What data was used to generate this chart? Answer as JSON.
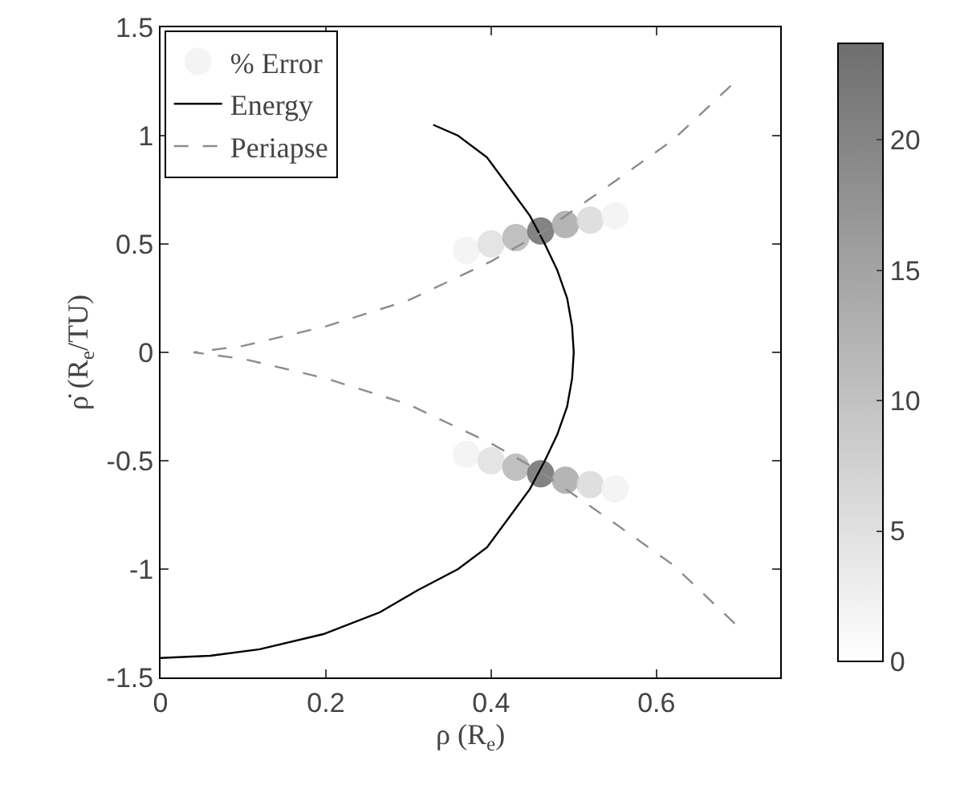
{
  "chart_data": {
    "type": "line",
    "xlabel": "ρ (R$_{e}$)",
    "ylabel": "ρ̇ (R$_{e}$/TU)",
    "xlim": [
      0,
      0.75
    ],
    "xticks": [
      0,
      0.2,
      0.4,
      0.6
    ],
    "ylim": [
      -1.5,
      1.5
    ],
    "yticks": [
      -1.5,
      -1,
      -0.5,
      0,
      0.5,
      1,
      1.5
    ],
    "clim": [
      0,
      23.7
    ],
    "cticks": [
      0,
      5,
      10,
      15,
      20
    ],
    "grid": false,
    "legend": "top left",
    "series": [
      {
        "name": "% Error",
        "type": "scatter",
        "colors": [
          "#f3f3f3",
          "#e0e0e0",
          "#b6b6b6",
          "#6e6e6e",
          "#a9a9a9",
          "#dadada",
          "#f3f3f3",
          "#f3f3f3",
          "#e0e0e0",
          "#b6b6b6",
          "#6e6e6e",
          "#a9a9a9",
          "#dadada",
          "#f3f3f3"
        ],
        "x": [
          0.37,
          0.4,
          0.43,
          0.46,
          0.49,
          0.52,
          0.55,
          0.37,
          0.4,
          0.43,
          0.46,
          0.49,
          0.52,
          0.55
        ],
        "values": [
          0.47,
          0.5,
          0.53,
          0.56,
          0.59,
          0.61,
          0.63,
          -0.47,
          -0.5,
          -0.53,
          -0.56,
          -0.59,
          -0.61,
          -0.63
        ],
        "cvalues": [
          2,
          5,
          12,
          23.7,
          14,
          6,
          2,
          2,
          5,
          12,
          23.7,
          14,
          6,
          2
        ]
      },
      {
        "name": "Energy",
        "color": "#000000",
        "line_style": "solid",
        "x": [
          0.33,
          0.36,
          0.395,
          0.424,
          0.447,
          0.465,
          0.48,
          0.492,
          0.498,
          0.5,
          0.498,
          0.492,
          0.48,
          0.465,
          0.447,
          0.424,
          0.395,
          0.36,
          0.31,
          0.265,
          0.197,
          0.12,
          0.06,
          0
        ],
        "values": [
          1.05,
          1.0,
          0.9,
          0.75,
          0.63,
          0.5,
          0.38,
          0.25,
          0.12,
          0,
          -0.12,
          -0.25,
          -0.38,
          -0.5,
          -0.63,
          -0.75,
          -0.9,
          -1.0,
          -1.1,
          -1.2,
          -1.3,
          -1.37,
          -1.4,
          -1.41
        ]
      },
      {
        "name": "Periapse",
        "color": "#8c8c8c",
        "line_style": "dashed",
        "x": [
          0.69,
          0.62,
          0.55,
          0.46,
          0.4,
          0.3,
          0.2,
          0.1,
          0.04,
          0.1,
          0.2,
          0.3,
          0.4,
          0.46,
          0.55,
          0.62,
          0.7
        ],
        "values": [
          1.23,
          0.98,
          0.79,
          0.55,
          0.42,
          0.24,
          0.12,
          0.03,
          0,
          -0.03,
          -0.12,
          -0.24,
          -0.42,
          -0.55,
          -0.79,
          -0.98,
          -1.27
        ]
      }
    ]
  }
}
